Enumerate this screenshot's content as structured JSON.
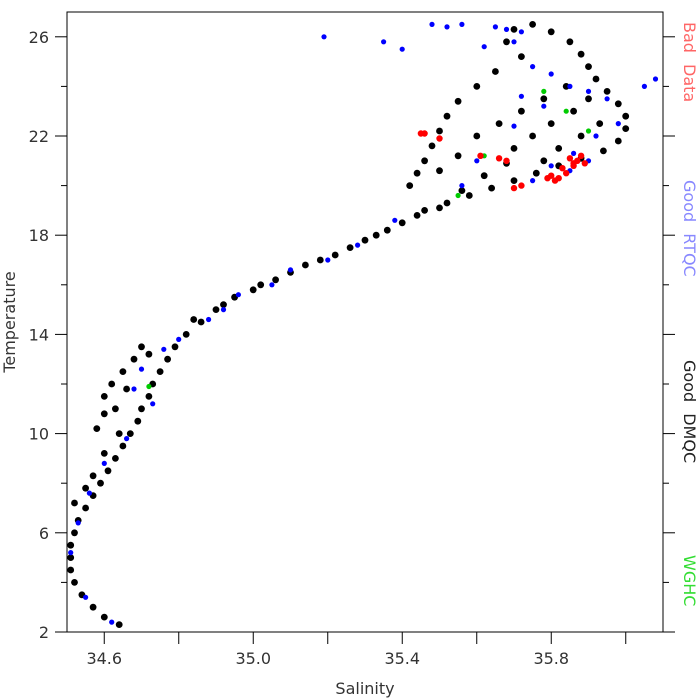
{
  "chart_data": {
    "type": "scatter",
    "title": "",
    "xlabel": "Salinity",
    "ylabel": "Temperature",
    "xlim": [
      34.5,
      36.1
    ],
    "ylim": [
      2,
      27
    ],
    "x_ticks": [
      {
        "value": 34.6,
        "label": "34.6"
      },
      {
        "value": 35.0,
        "label": "35.0"
      },
      {
        "value": 35.4,
        "label": "35.4"
      },
      {
        "value": 35.8,
        "label": "35.8"
      }
    ],
    "x_minor_ticks": [
      34.8,
      35.2,
      35.6,
      36.0
    ],
    "y_ticks": [
      {
        "value": 2,
        "label": "2"
      },
      {
        "value": 6,
        "label": "6"
      },
      {
        "value": 10,
        "label": "10"
      },
      {
        "value": 14,
        "label": "14"
      },
      {
        "value": 18,
        "label": "18"
      },
      {
        "value": 22,
        "label": "22"
      },
      {
        "value": 26,
        "label": "26"
      }
    ],
    "y_minor_ticks": [
      4,
      8,
      12,
      16,
      20,
      24
    ],
    "grid": false,
    "legend_position": "right-outside-vertical",
    "series": [
      {
        "name": "Good DMQC",
        "color": "#000000",
        "points": [
          [
            34.64,
            2.3
          ],
          [
            34.6,
            2.6
          ],
          [
            34.57,
            3.0
          ],
          [
            34.54,
            3.5
          ],
          [
            34.52,
            4.0
          ],
          [
            34.51,
            4.5
          ],
          [
            34.51,
            5.0
          ],
          [
            34.51,
            5.5
          ],
          [
            34.52,
            6.0
          ],
          [
            34.53,
            6.5
          ],
          [
            34.55,
            7.0
          ],
          [
            34.57,
            7.5
          ],
          [
            34.59,
            8.0
          ],
          [
            34.61,
            8.5
          ],
          [
            34.63,
            9.0
          ],
          [
            34.65,
            9.5
          ],
          [
            34.67,
            10.0
          ],
          [
            34.69,
            10.5
          ],
          [
            34.7,
            11.0
          ],
          [
            34.72,
            11.5
          ],
          [
            34.73,
            12.0
          ],
          [
            34.75,
            12.5
          ],
          [
            34.77,
            13.0
          ],
          [
            34.79,
            13.5
          ],
          [
            34.82,
            14.0
          ],
          [
            34.86,
            14.5
          ],
          [
            34.9,
            15.0
          ],
          [
            34.95,
            15.5
          ],
          [
            35.02,
            16.0
          ],
          [
            35.1,
            16.5
          ],
          [
            35.18,
            17.0
          ],
          [
            35.26,
            17.5
          ],
          [
            35.33,
            18.0
          ],
          [
            35.4,
            18.5
          ],
          [
            35.46,
            19.0
          ],
          [
            35.52,
            19.3
          ],
          [
            35.58,
            19.6
          ],
          [
            35.64,
            19.9
          ],
          [
            35.7,
            20.2
          ],
          [
            35.76,
            20.5
          ],
          [
            35.82,
            20.8
          ],
          [
            35.88,
            21.1
          ],
          [
            35.94,
            21.4
          ],
          [
            35.98,
            21.8
          ],
          [
            36.0,
            22.3
          ],
          [
            36.0,
            22.8
          ],
          [
            35.98,
            23.3
          ],
          [
            35.95,
            23.8
          ],
          [
            35.92,
            24.3
          ],
          [
            35.9,
            24.8
          ],
          [
            35.88,
            25.3
          ],
          [
            35.85,
            25.8
          ],
          [
            35.8,
            26.2
          ],
          [
            35.75,
            26.5
          ],
          [
            35.7,
            26.3
          ],
          [
            35.68,
            25.8
          ],
          [
            35.72,
            25.2
          ],
          [
            35.65,
            24.6
          ],
          [
            35.6,
            24.0
          ],
          [
            35.55,
            23.4
          ],
          [
            35.52,
            22.8
          ],
          [
            35.5,
            22.2
          ],
          [
            35.48,
            21.6
          ],
          [
            35.46,
            21.0
          ],
          [
            35.44,
            20.5
          ],
          [
            35.42,
            20.0
          ],
          [
            35.6,
            22.0
          ],
          [
            35.66,
            22.5
          ],
          [
            35.72,
            23.0
          ],
          [
            35.78,
            23.5
          ],
          [
            35.84,
            24.0
          ],
          [
            35.7,
            21.5
          ],
          [
            35.75,
            22.0
          ],
          [
            35.8,
            22.5
          ],
          [
            35.86,
            23.0
          ],
          [
            35.9,
            23.5
          ],
          [
            35.93,
            22.5
          ],
          [
            35.88,
            22.0
          ],
          [
            35.82,
            21.5
          ],
          [
            35.78,
            21.0
          ],
          [
            34.6,
            11.5
          ],
          [
            34.62,
            12.0
          ],
          [
            34.65,
            12.5
          ],
          [
            34.68,
            13.0
          ],
          [
            34.7,
            13.5
          ],
          [
            34.63,
            11.0
          ],
          [
            34.66,
            11.8
          ],
          [
            34.72,
            13.2
          ],
          [
            34.58,
            10.2
          ],
          [
            34.6,
            10.8
          ],
          [
            34.52,
            7.2
          ],
          [
            34.55,
            7.8
          ],
          [
            34.57,
            8.3
          ],
          [
            34.6,
            9.2
          ],
          [
            34.64,
            10.0
          ],
          [
            35.55,
            21.2
          ],
          [
            35.5,
            20.6
          ],
          [
            35.56,
            19.8
          ],
          [
            35.62,
            20.4
          ],
          [
            35.68,
            20.9
          ],
          [
            34.84,
            14.6
          ],
          [
            34.92,
            15.2
          ],
          [
            35.0,
            15.8
          ],
          [
            35.06,
            16.2
          ],
          [
            35.14,
            16.8
          ],
          [
            35.22,
            17.2
          ],
          [
            35.3,
            17.8
          ],
          [
            35.36,
            18.2
          ],
          [
            35.44,
            18.8
          ],
          [
            35.5,
            19.1
          ]
        ]
      },
      {
        "name": "Good RTQC",
        "color": "#0000ff",
        "points": [
          [
            35.19,
            26.0
          ],
          [
            35.48,
            26.5
          ],
          [
            35.52,
            26.4
          ],
          [
            35.56,
            26.5
          ],
          [
            35.65,
            26.4
          ],
          [
            35.68,
            26.3
          ],
          [
            35.72,
            26.2
          ],
          [
            35.62,
            25.6
          ],
          [
            35.7,
            25.8
          ],
          [
            35.35,
            25.8
          ],
          [
            35.4,
            25.5
          ],
          [
            35.75,
            24.8
          ],
          [
            35.8,
            24.5
          ],
          [
            35.85,
            24.0
          ],
          [
            35.9,
            23.8
          ],
          [
            35.95,
            23.5
          ],
          [
            36.05,
            24.0
          ],
          [
            36.08,
            24.3
          ],
          [
            35.98,
            22.5
          ],
          [
            35.92,
            22.0
          ],
          [
            35.86,
            21.3
          ],
          [
            35.8,
            20.8
          ],
          [
            35.75,
            20.2
          ],
          [
            35.85,
            20.6
          ],
          [
            35.9,
            21.0
          ],
          [
            35.72,
            23.6
          ],
          [
            35.78,
            23.2
          ],
          [
            35.7,
            22.4
          ],
          [
            35.6,
            21.0
          ],
          [
            35.56,
            20.0
          ],
          [
            35.2,
            17.0
          ],
          [
            35.1,
            16.6
          ],
          [
            35.05,
            16.0
          ],
          [
            34.96,
            15.6
          ],
          [
            34.88,
            14.6
          ],
          [
            34.8,
            13.8
          ],
          [
            34.76,
            13.4
          ],
          [
            34.7,
            12.6
          ],
          [
            34.68,
            11.8
          ],
          [
            34.73,
            11.2
          ],
          [
            34.66,
            9.8
          ],
          [
            34.6,
            8.8
          ],
          [
            34.56,
            7.6
          ],
          [
            34.53,
            6.4
          ],
          [
            34.51,
            5.2
          ],
          [
            34.55,
            3.4
          ],
          [
            34.62,
            2.4
          ],
          [
            35.38,
            18.6
          ],
          [
            35.28,
            17.6
          ],
          [
            34.92,
            15.0
          ]
        ]
      },
      {
        "name": "WGHC",
        "color": "#00cc00",
        "points": [
          [
            34.72,
            11.9
          ],
          [
            35.78,
            23.8
          ],
          [
            35.84,
            23.0
          ],
          [
            35.55,
            19.6
          ],
          [
            35.62,
            21.2
          ],
          [
            35.9,
            22.2
          ]
        ]
      },
      {
        "name": "Bad Data",
        "color": "#ff0000",
        "points": [
          [
            35.46,
            22.1
          ],
          [
            35.45,
            22.1
          ],
          [
            35.5,
            21.9
          ],
          [
            35.61,
            21.2
          ],
          [
            35.66,
            21.1
          ],
          [
            35.68,
            21.0
          ],
          [
            35.8,
            20.4
          ],
          [
            35.82,
            20.3
          ],
          [
            35.84,
            20.5
          ],
          [
            35.86,
            20.8
          ],
          [
            35.87,
            21.0
          ],
          [
            35.88,
            21.2
          ],
          [
            35.85,
            21.1
          ],
          [
            35.83,
            20.7
          ],
          [
            35.81,
            20.2
          ],
          [
            35.79,
            20.3
          ],
          [
            35.86,
            20.9
          ],
          [
            35.89,
            20.9
          ],
          [
            35.7,
            19.9
          ],
          [
            35.72,
            20.0
          ]
        ]
      }
    ],
    "legend": [
      {
        "label": "Bad Data",
        "color": "#ff6666"
      },
      {
        "label": "Good RTQC",
        "color": "#8888ff"
      },
      {
        "label": "Good DMQC",
        "color": "#222222"
      },
      {
        "label": "WGHC",
        "color": "#33dd33"
      }
    ]
  }
}
